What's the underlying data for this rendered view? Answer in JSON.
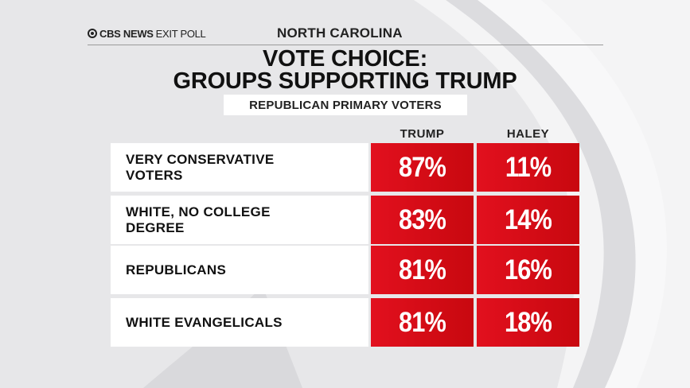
{
  "header": {
    "brand": "CBS NEWS",
    "kind": "EXIT POLL",
    "state": "NORTH CAROLINA"
  },
  "title_line1": "VOTE CHOICE:",
  "title_line2": "GROUPS SUPPORTING TRUMP",
  "subtitle": "REPUBLICAN PRIMARY VOTERS",
  "columns": [
    "TRUMP",
    "HALEY"
  ],
  "rows": [
    {
      "label_line1": "VERY CONSERVATIVE",
      "label_line2": "VOTERS",
      "trump": "87%",
      "haley": "11%"
    },
    {
      "label_line1": "WHITE, NO COLLEGE",
      "label_line2": "DEGREE",
      "trump": "83%",
      "haley": "14%"
    },
    {
      "label_line1": "REPUBLICANS",
      "label_line2": "",
      "trump": "81%",
      "haley": "16%"
    },
    {
      "label_line1": "WHITE EVANGELICALS",
      "label_line2": "",
      "trump": "81%",
      "haley": "18%"
    }
  ],
  "colors": {
    "background": "#e7e7e9",
    "cell_red": "#d80c16",
    "label_bg": "#ffffff",
    "text": "#111111"
  },
  "chart_data": {
    "type": "table",
    "title": "VOTE CHOICE: GROUPS SUPPORTING TRUMP",
    "subtitle": "REPUBLICAN PRIMARY VOTERS",
    "categories": [
      "VERY CONSERVATIVE VOTERS",
      "WHITE, NO COLLEGE DEGREE",
      "REPUBLICANS",
      "WHITE EVANGELICALS"
    ],
    "series": [
      {
        "name": "TRUMP",
        "values": [
          87,
          83,
          81,
          81
        ]
      },
      {
        "name": "HALEY",
        "values": [
          11,
          14,
          16,
          18
        ]
      }
    ]
  }
}
